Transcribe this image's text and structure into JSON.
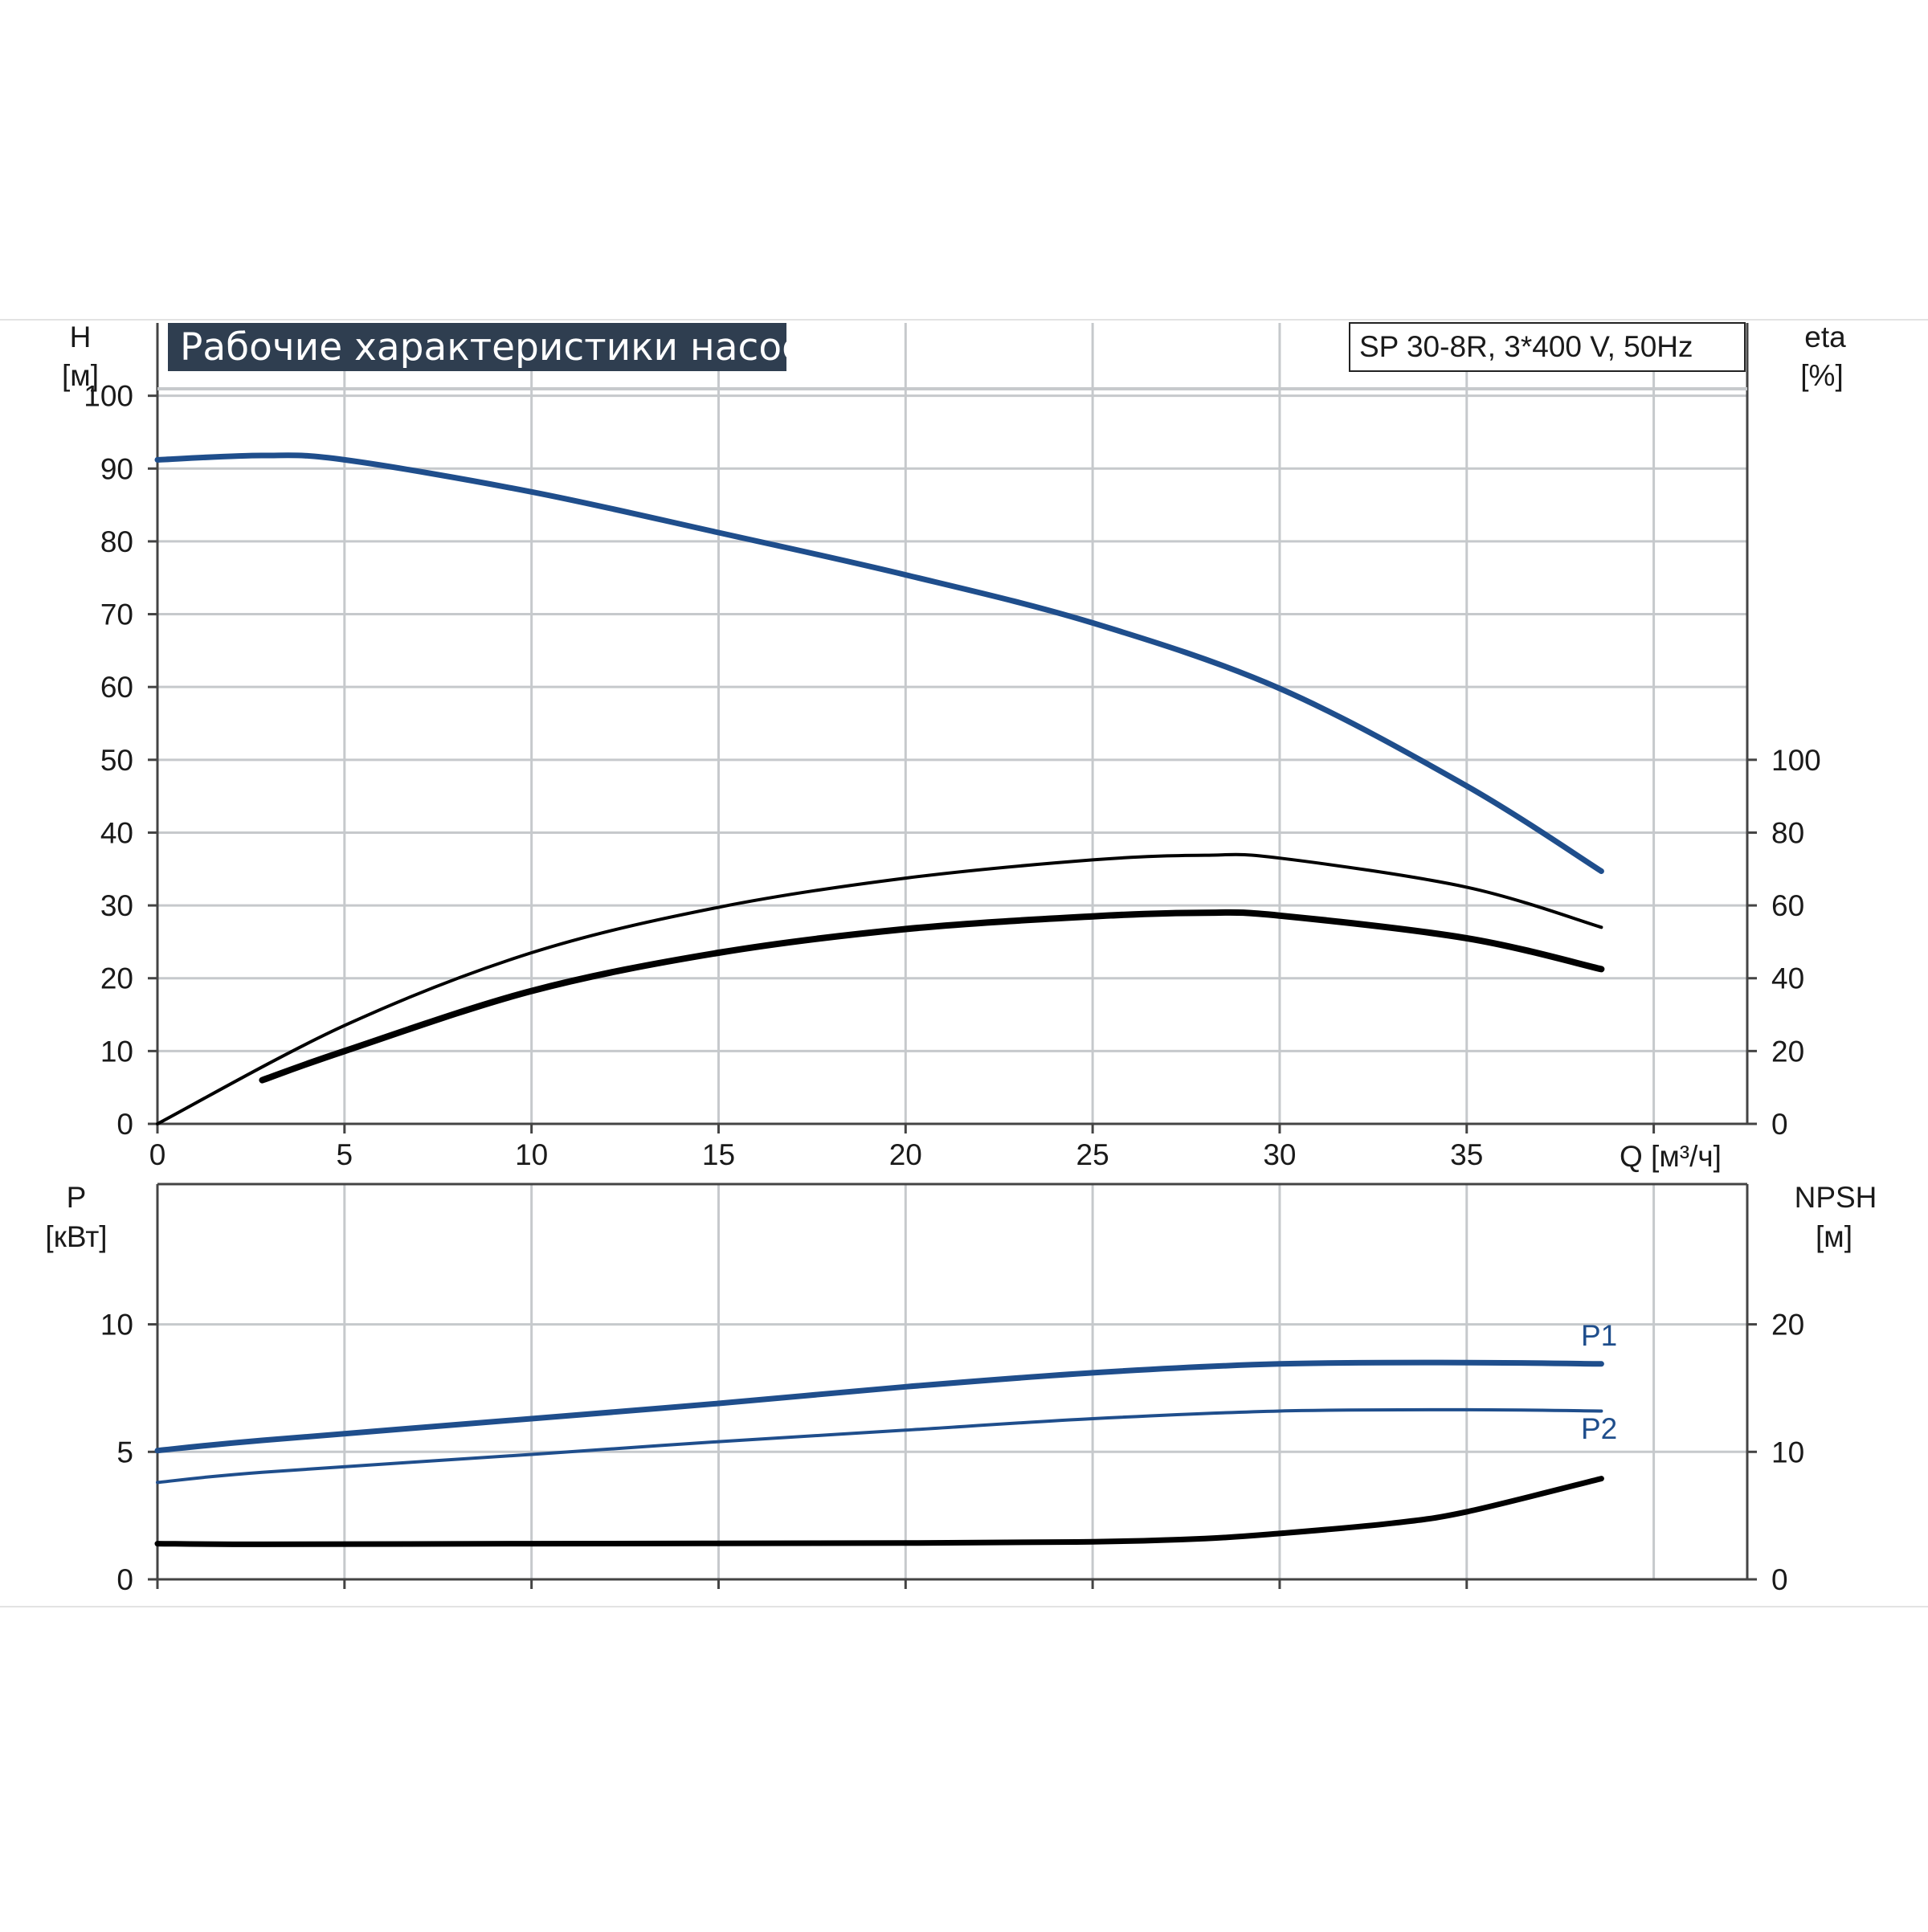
{
  "title": "Рабочие характеристики насоса",
  "model": "SP 30-8R, 3*400 V, 50Hz",
  "colors": {
    "head": "#1f4e8c",
    "power": "#1f4e8c",
    "efficiency": "#000000",
    "npsh": "#000000",
    "grid": "#c6c9cc",
    "title_bg": "#2f3e50"
  },
  "chart_data": [
    {
      "type": "line",
      "axes": {
        "x": {
          "label": "Q [м³/ч]",
          "range": [
            0,
            42.5
          ],
          "ticks": [
            0,
            5,
            10,
            15,
            20,
            25,
            30,
            35
          ]
        },
        "y_left": {
          "label_line1": "H",
          "label_line2": "[м]",
          "range": [
            0,
            110
          ],
          "ticks": [
            0,
            10,
            20,
            30,
            40,
            50,
            60,
            70,
            80,
            90,
            100
          ]
        },
        "y_right": {
          "label_line1": "eta",
          "label_line2": "[%]",
          "range": [
            0,
            220
          ],
          "ticks": [
            0,
            20,
            40,
            60,
            80,
            100
          ]
        }
      },
      "grid": true,
      "series": [
        {
          "axis": "left",
          "role": "head",
          "points": [
            [
              0,
              91.2
            ],
            [
              2.8,
              91.8
            ],
            [
              5,
              91.2
            ],
            [
              10,
              86.8
            ],
            [
              15,
              81.2
            ],
            [
              20,
              75.4
            ],
            [
              25,
              68.8
            ],
            [
              30,
              59.8
            ],
            [
              35,
              46.4
            ],
            [
              38.6,
              34.7
            ]
          ]
        },
        {
          "axis": "right",
          "role": "efficiency-thin",
          "points": [
            [
              0,
              0
            ],
            [
              5,
              27
            ],
            [
              10,
              47
            ],
            [
              15,
              59.5
            ],
            [
              20,
              67.5
            ],
            [
              25,
              72.5
            ],
            [
              28,
              73.8
            ],
            [
              30,
              73
            ],
            [
              35,
              65
            ],
            [
              38.6,
              54
            ]
          ]
        },
        {
          "axis": "right",
          "role": "efficiency-thick",
          "points": [
            [
              2.8,
              12
            ],
            [
              5,
              20
            ],
            [
              10,
              36.5
            ],
            [
              15,
              47
            ],
            [
              20,
              53.5
            ],
            [
              25,
              57
            ],
            [
              28,
              58
            ],
            [
              30,
              57.2
            ],
            [
              35,
              51
            ],
            [
              38.6,
              42.5
            ]
          ]
        }
      ]
    },
    {
      "type": "line",
      "axes": {
        "x": {
          "range": [
            0,
            42.5
          ],
          "ticks": [
            0,
            5,
            10,
            15,
            20,
            25,
            30,
            35
          ]
        },
        "y_left": {
          "label_line1": "P",
          "label_line2": "[кВт]",
          "range": [
            0,
            15.5
          ],
          "ticks": [
            0,
            5,
            10
          ]
        },
        "y_right": {
          "label_line1": "NPSH",
          "label_line2": "[м]",
          "range": [
            0,
            31
          ],
          "ticks": [
            0,
            10,
            20
          ]
        }
      },
      "grid": true,
      "series": [
        {
          "name": "P1",
          "axis": "left",
          "role": "power-p1",
          "points": [
            [
              0,
              5.05
            ],
            [
              2.8,
              5.45
            ],
            [
              10,
              6.3
            ],
            [
              15,
              6.9
            ],
            [
              20,
              7.55
            ],
            [
              25,
              8.1
            ],
            [
              30,
              8.45
            ],
            [
              35,
              8.5
            ],
            [
              38.6,
              8.45
            ]
          ]
        },
        {
          "name": "P2",
          "axis": "left",
          "role": "power-p2",
          "points": [
            [
              0,
              3.8
            ],
            [
              2.8,
              4.2
            ],
            [
              10,
              4.9
            ],
            [
              15,
              5.4
            ],
            [
              20,
              5.85
            ],
            [
              25,
              6.3
            ],
            [
              30,
              6.6
            ],
            [
              35,
              6.65
            ],
            [
              38.6,
              6.6
            ]
          ]
        },
        {
          "axis": "right",
          "role": "npsh",
          "points": [
            [
              0,
              2.8
            ],
            [
              2.8,
              2.75
            ],
            [
              10,
              2.8
            ],
            [
              20,
              2.85
            ],
            [
              25,
              2.95
            ],
            [
              28,
              3.2
            ],
            [
              30,
              3.6
            ],
            [
              33,
              4.4
            ],
            [
              35,
              5.3
            ],
            [
              38.6,
              7.9
            ]
          ]
        }
      ]
    }
  ]
}
